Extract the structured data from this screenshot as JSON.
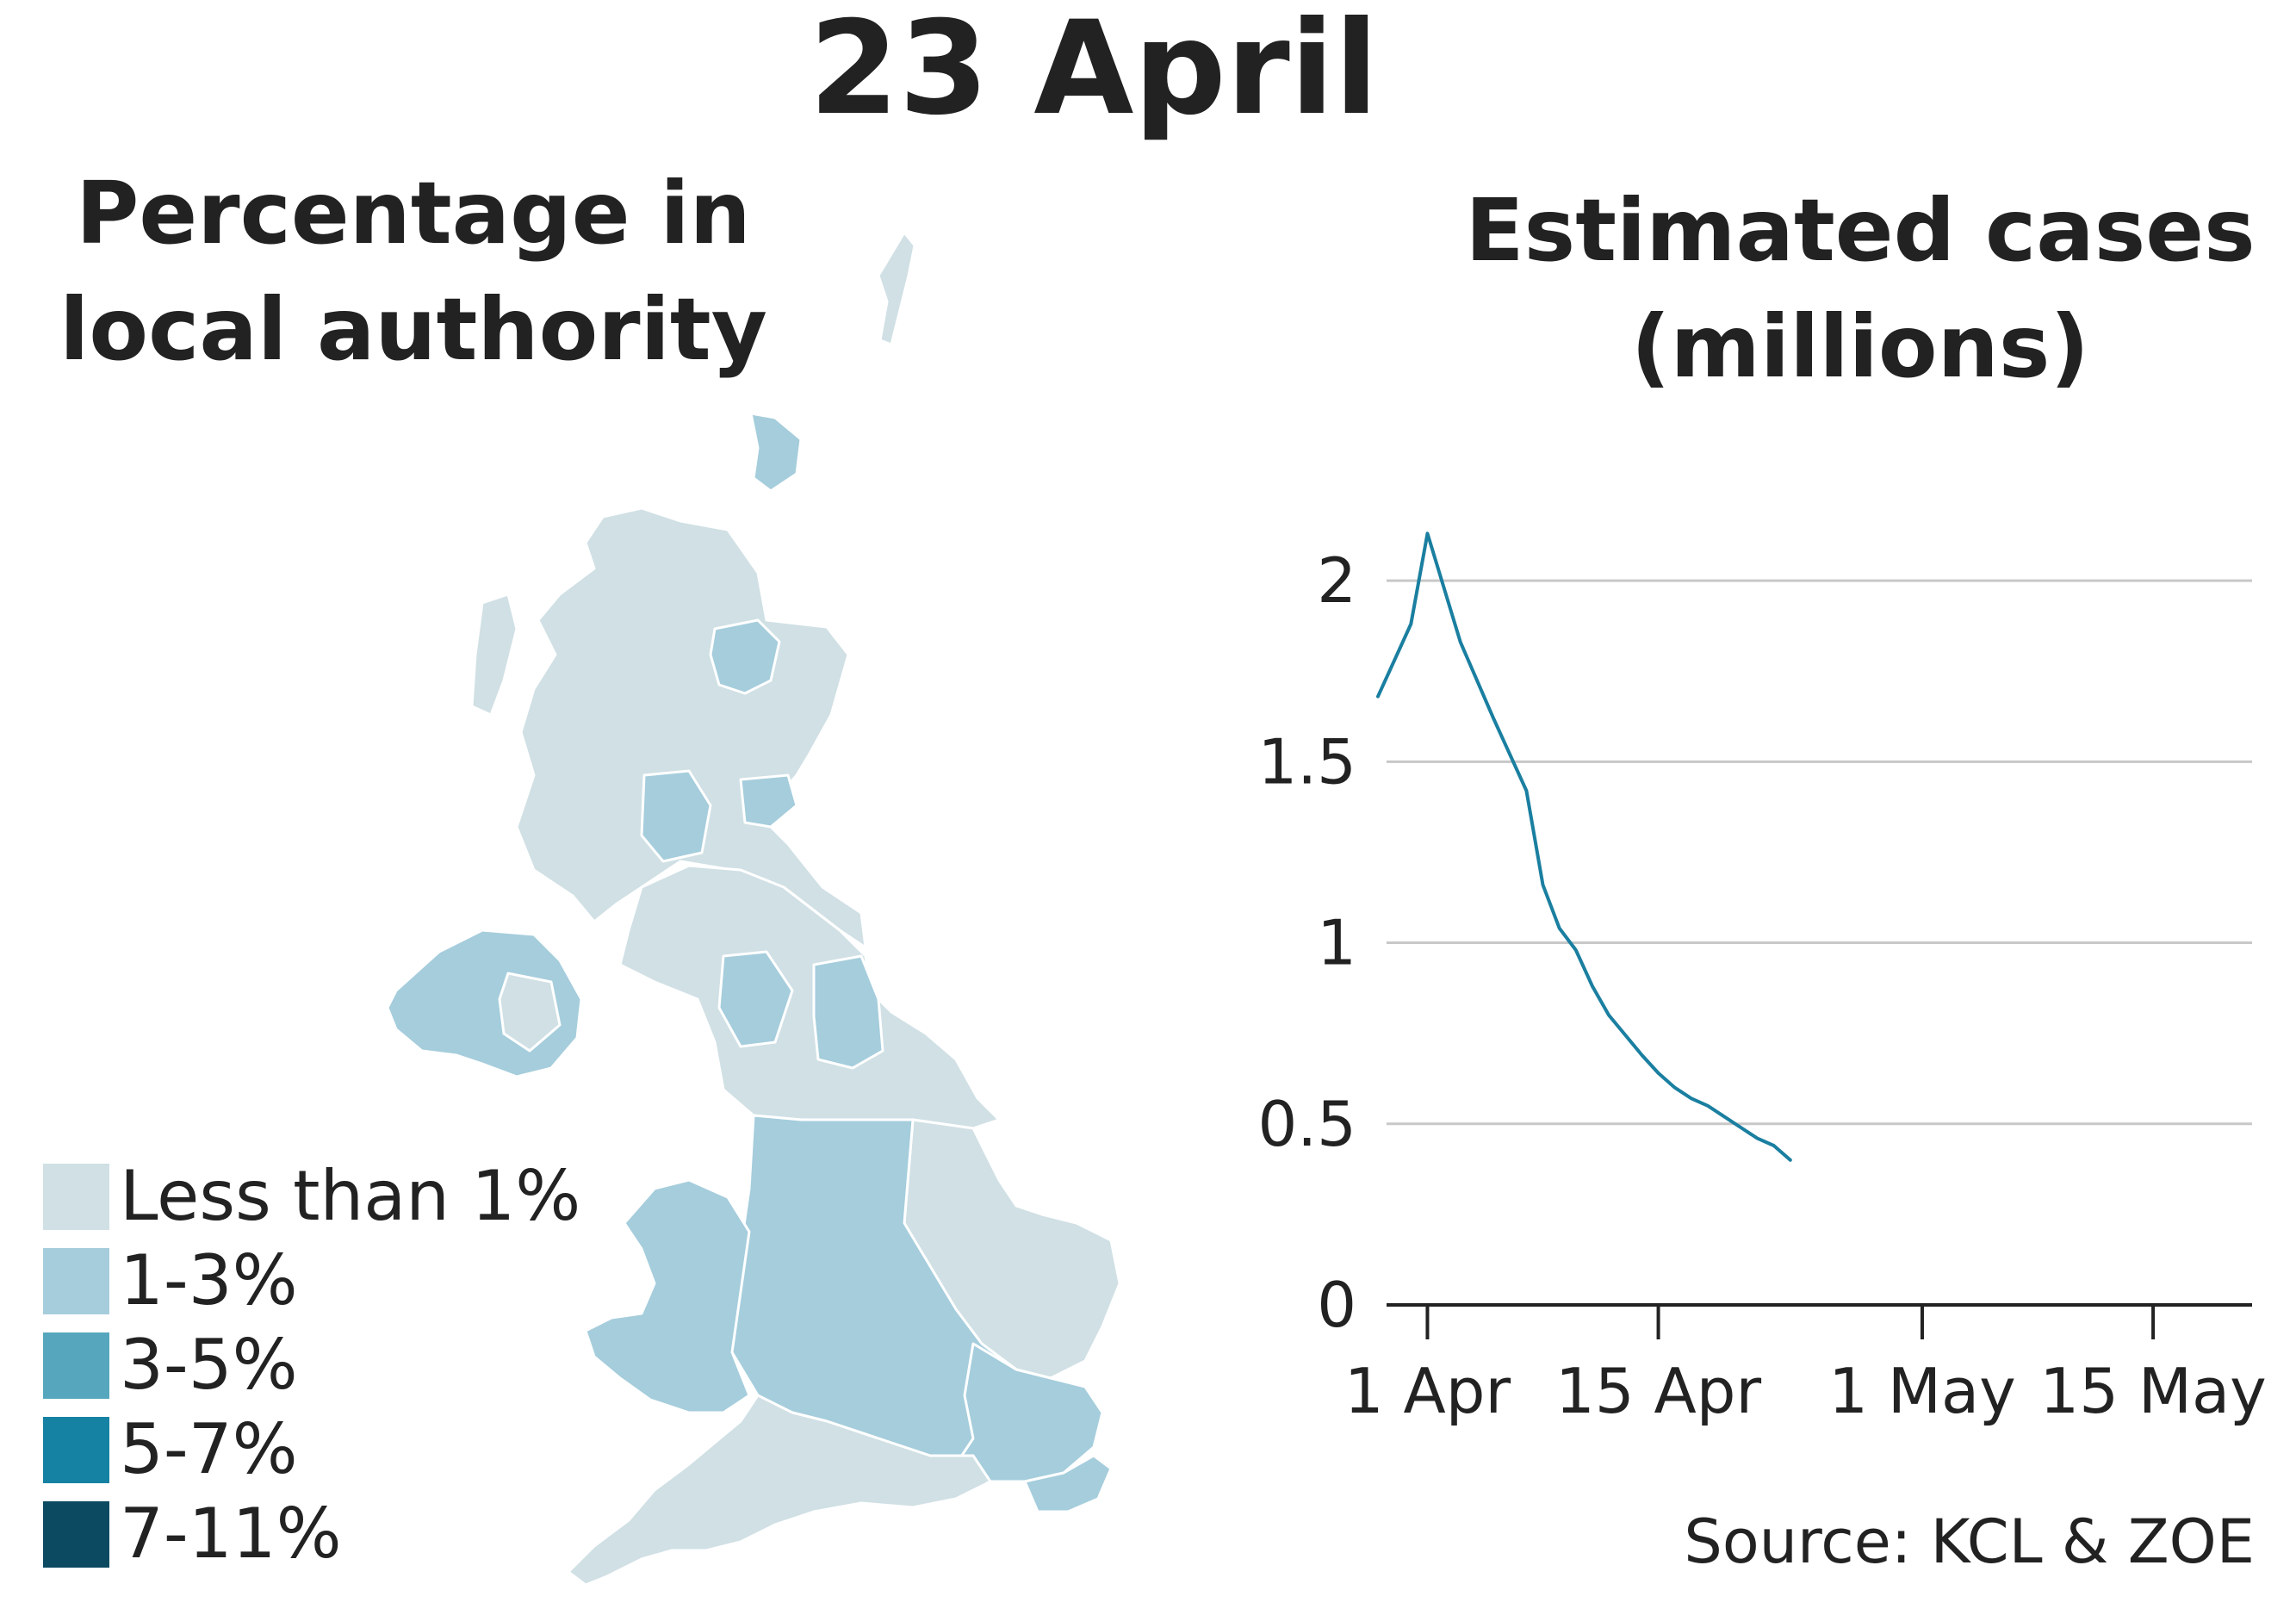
{
  "date_title": "23 April",
  "map": {
    "title_line1": "Percentage in",
    "title_line2": "local authority",
    "legend": [
      {
        "label": "Less than 1%",
        "color": "#d0e0e5"
      },
      {
        "label": "1-3%",
        "color": "#a5cddc"
      },
      {
        "label": "3-5%",
        "color": "#56a7bd"
      },
      {
        "label": "5-7%",
        "color": "#1582a3"
      },
      {
        "label": "7-11%",
        "color": "#0c4a62"
      }
    ]
  },
  "chart": {
    "title_line1": "Estimated cases",
    "title_line2": "(millions)"
  },
  "source": "Source: KCL & ZOE",
  "chart_data": {
    "type": "line",
    "title": "Estimated cases (millions)",
    "xlabel": "",
    "ylabel": "",
    "x_ticks": [
      "1 Apr",
      "15 Apr",
      "1 May",
      "15 May"
    ],
    "y_ticks": [
      "0",
      "0.5",
      "1",
      "1.5",
      "2"
    ],
    "ylim": [
      0,
      2.2
    ],
    "xlim": [
      "2020-03-29",
      "2020-05-21"
    ],
    "grid": true,
    "line_color": "#1a7fa0",
    "series": [
      {
        "x": [
          "2020-03-29",
          "2020-03-31",
          "2020-04-01",
          "2020-04-03",
          "2020-04-05",
          "2020-04-07",
          "2020-04-08",
          "2020-04-09",
          "2020-04-10",
          "2020-04-11",
          "2020-04-12",
          "2020-04-14",
          "2020-04-15",
          "2020-04-16",
          "2020-04-17",
          "2020-04-18",
          "2020-04-19",
          "2020-04-20",
          "2020-04-21",
          "2020-04-22",
          "2020-04-23"
        ],
        "y": [
          1.68,
          1.88,
          2.13,
          1.83,
          1.62,
          1.42,
          1.16,
          1.04,
          0.98,
          0.88,
          0.8,
          0.69,
          0.64,
          0.6,
          0.57,
          0.55,
          0.52,
          0.49,
          0.46,
          0.44,
          0.4
        ]
      }
    ]
  }
}
